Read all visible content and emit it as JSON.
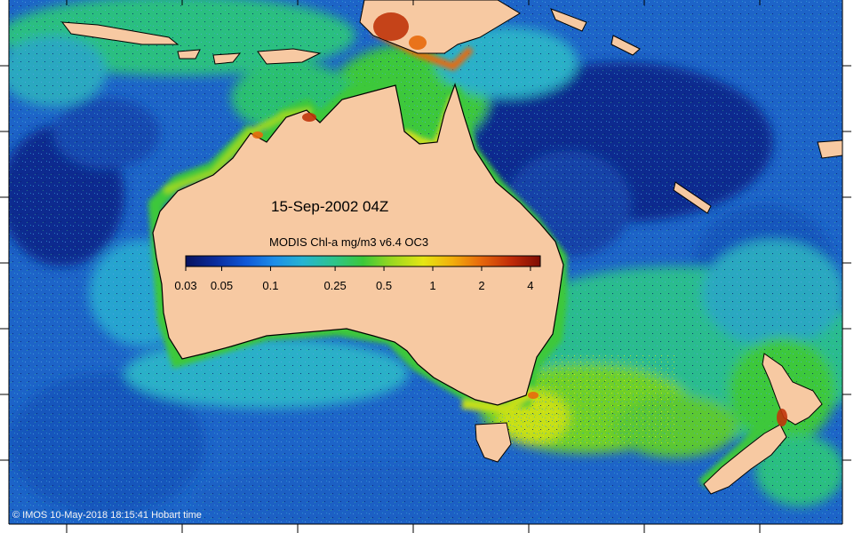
{
  "map": {
    "date_label": "15-Sep-2002 04Z",
    "colorbar": {
      "title": "MODIS Chl-a mg/m3 v6.4 OC3",
      "scale": "log",
      "ticks": [
        "0.03",
        "0.05",
        "0.1",
        "0.25",
        "0.5",
        "1",
        "2",
        "4"
      ],
      "colors": [
        "#08125e",
        "#0a2a9a",
        "#1058d8",
        "#1e8ee8",
        "#27b4d2",
        "#2ec48a",
        "#3cc83a",
        "#9ad820",
        "#e6e614",
        "#f2b00c",
        "#e86a0c",
        "#c02a08",
        "#7e0c04"
      ]
    },
    "copyright": "© IMOS 10-May-2018 18:15:41 Hobart time",
    "colors": {
      "land": "#f7c9a2",
      "deep_ocean": "#0b2a8f",
      "ocean": "#1d64c8",
      "shelf": "#38c84c",
      "coastal_high": "#c0350b",
      "no_data": "#ffffff"
    }
  }
}
